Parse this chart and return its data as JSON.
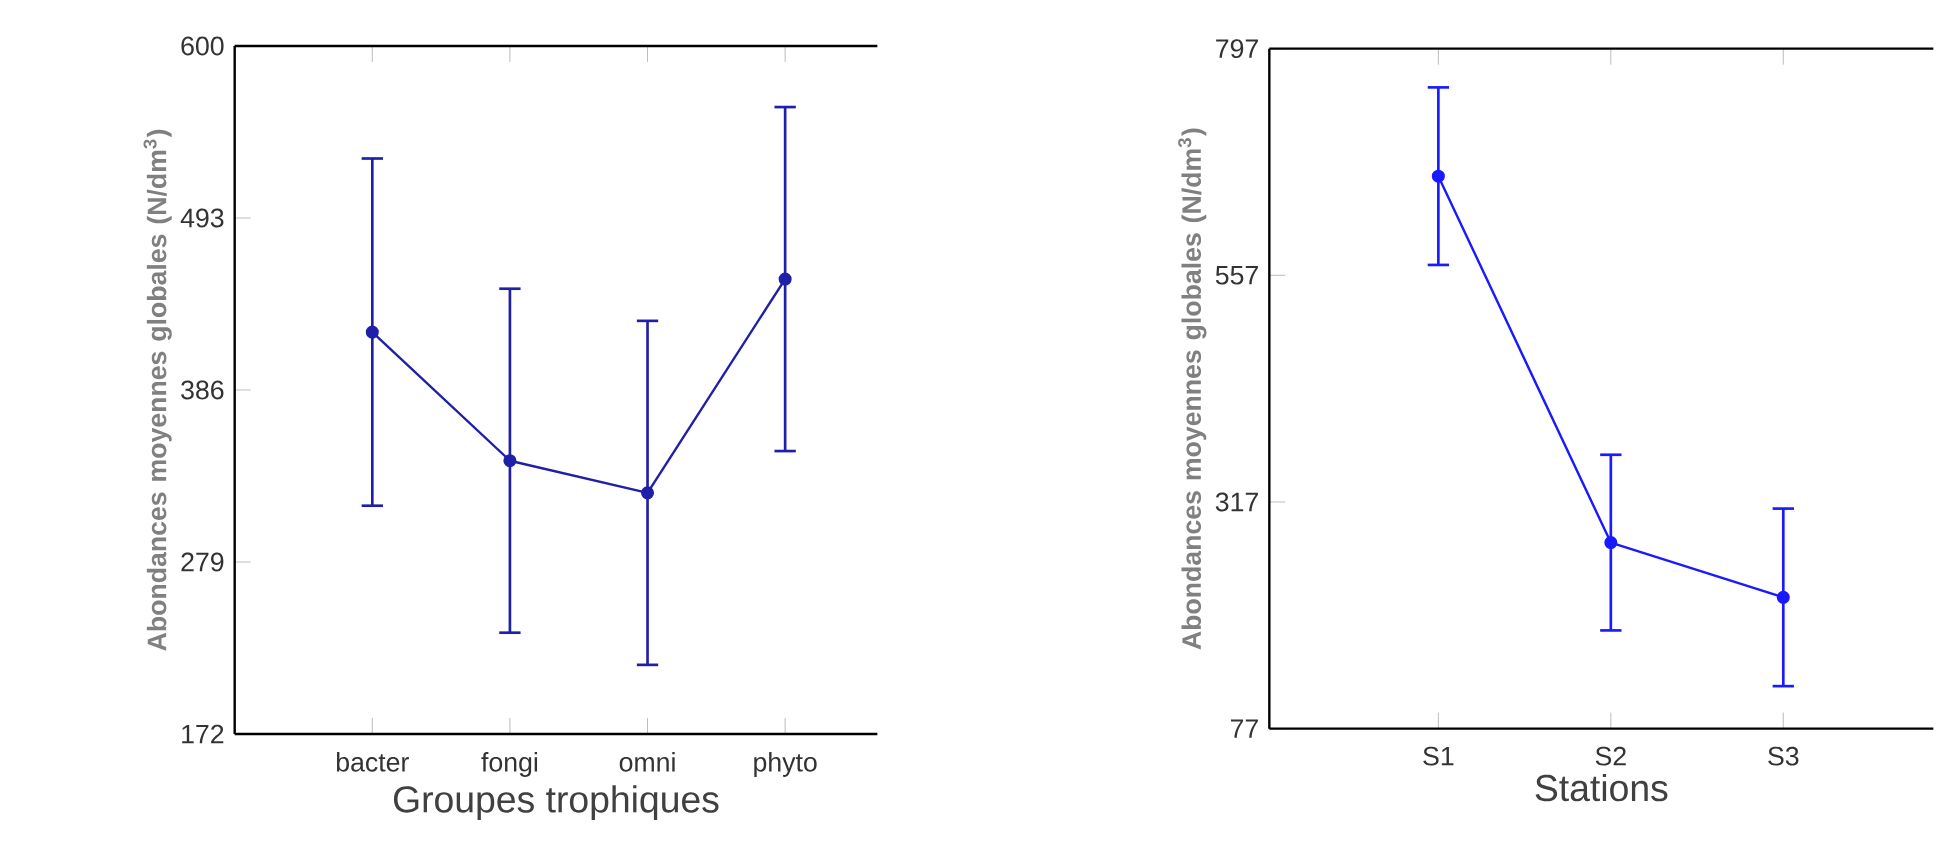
{
  "chart_data": [
    {
      "type": "line",
      "categories": [
        "bacter",
        "fongi",
        "omni",
        "phyto"
      ],
      "values": [
        422,
        342,
        322,
        455
      ],
      "errors": [
        108,
        107,
        107,
        107
      ],
      "color": "#1f1fa8",
      "marker": "circle",
      "ylim": [
        172,
        600
      ],
      "yticks": [
        172,
        279,
        386,
        493,
        600
      ],
      "xlabel": "Groupes trophiques",
      "ylabel": "Abondances moyennes globales (N/dm$^{3}$)"
    },
    {
      "type": "line",
      "categories": [
        "S1",
        "S2",
        "S3"
      ],
      "values": [
        662,
        274,
        216
      ],
      "errors": [
        94,
        93,
        94
      ],
      "color": "#1a1aff",
      "marker": "circle",
      "ylim": [
        77,
        797
      ],
      "yticks": [
        77,
        317,
        557,
        797
      ],
      "xlabel": "Stations",
      "ylabel": "Abondances moyennes globales (N/dm$^{3}$)"
    }
  ]
}
